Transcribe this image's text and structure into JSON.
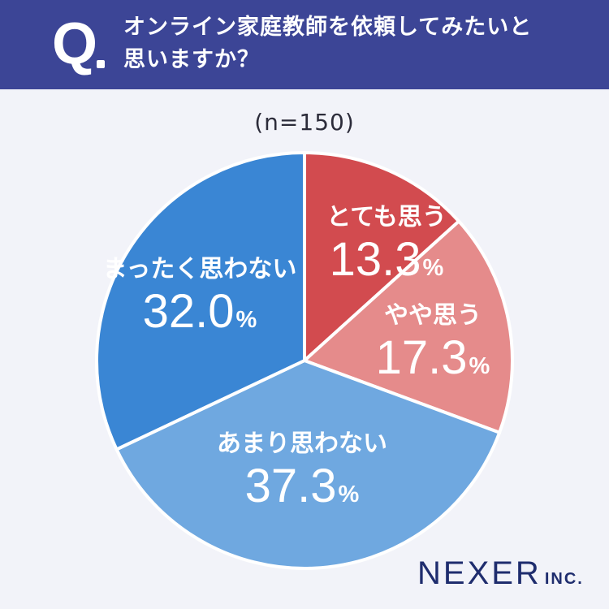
{
  "header": {
    "q_label": "Q",
    "question_line1": "オンライン家庭教師を依頼してみたいと",
    "question_line2": "思いますか？"
  },
  "sample_size": "(n=150)",
  "chart_data": {
    "type": "pie",
    "title": "",
    "start_angle_deg": 0,
    "direction": "clockwise",
    "slices": [
      {
        "label": "とても思う",
        "value": 13.3,
        "display": "13.3",
        "unit": "%",
        "color": "#d24b4f"
      },
      {
        "label": "やや思う",
        "value": 17.3,
        "display": "17.3",
        "unit": "%",
        "color": "#e58b8b"
      },
      {
        "label": "あまり思わない",
        "value": 37.3,
        "display": "37.3",
        "unit": "%",
        "color": "#6fa8e0"
      },
      {
        "label": "まったく思わない",
        "value": 32.0,
        "display": "32.0",
        "unit": "%",
        "color": "#3a86d4"
      }
    ]
  },
  "brand": {
    "name": "NEXER",
    "suffix": "INC."
  }
}
